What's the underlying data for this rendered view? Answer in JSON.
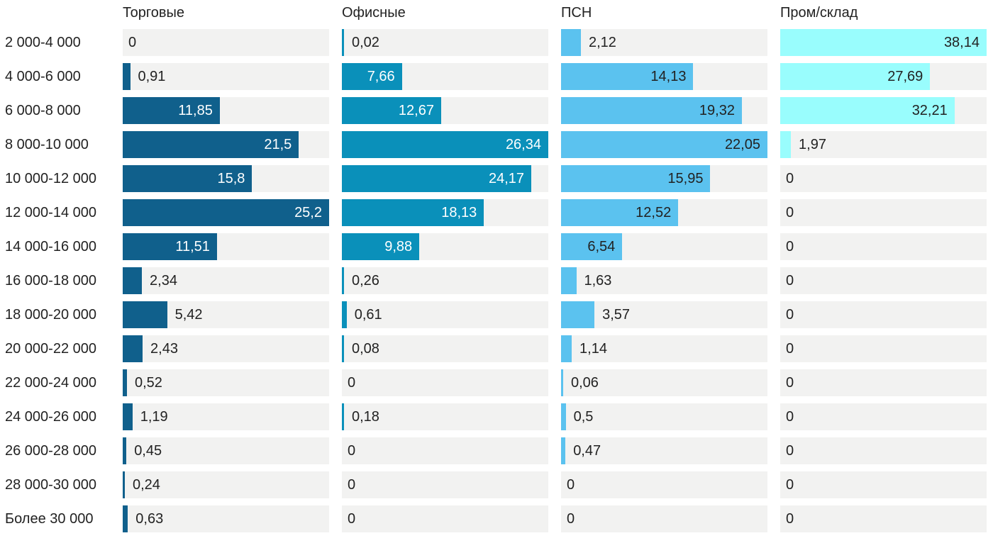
{
  "chart_data": {
    "type": "bar",
    "orientation": "horizontal",
    "title": "",
    "xlabel": "",
    "ylabel": "",
    "legend_position": "column-headers-top",
    "grid": false,
    "number_format": "comma-decimal",
    "track_color": "#F2F2F1",
    "text_color": "#222222",
    "categories": [
      "2 000-4 000",
      "4 000-6 000",
      "6 000-8 000",
      "8 000-10 000",
      "10 000-12 000",
      "12 000-14 000",
      "14 000-16 000",
      "16 000-18 000",
      "18 000-20 000",
      "20 000-22 000",
      "22 000-24 000",
      "24 000-26 000",
      "26 000-28 000",
      "28 000-30 000",
      "Более 30 000"
    ],
    "series": [
      {
        "name": "Торговые",
        "color": "#10608C",
        "inside_text_color": "#FFFFFF",
        "values": [
          0,
          0.91,
          11.85,
          21.5,
          15.8,
          25.2,
          11.51,
          2.34,
          5.42,
          2.43,
          0.52,
          1.19,
          0.45,
          0.24,
          0.63
        ],
        "labels": [
          "0",
          "0,91",
          "11,85",
          "21,5",
          "15,8",
          "25,2",
          "11,51",
          "2,34",
          "5,42",
          "2,43",
          "0,52",
          "1,19",
          "0,45",
          "0,24",
          "0,63"
        ]
      },
      {
        "name": "Офисные",
        "color": "#0A90BA",
        "inside_text_color": "#FFFFFF",
        "values": [
          0.02,
          7.66,
          12.67,
          26.34,
          24.17,
          18.13,
          9.88,
          0.26,
          0.61,
          0.08,
          0,
          0.18,
          0,
          0,
          0
        ],
        "labels": [
          "0,02",
          "7,66",
          "12,67",
          "26,34",
          "24,17",
          "18,13",
          "9,88",
          "0,26",
          "0,61",
          "0,08",
          "0",
          "0,18",
          "0",
          "0",
          "0"
        ]
      },
      {
        "name": "ПСН",
        "color": "#5BC2EF",
        "inside_text_color": "#222222",
        "values": [
          2.12,
          14.13,
          19.32,
          22.05,
          15.95,
          12.52,
          6.54,
          1.63,
          3.57,
          1.14,
          0.06,
          0.5,
          0.47,
          0,
          0
        ],
        "labels": [
          "2,12",
          "14,13",
          "19,32",
          "22,05",
          "15,95",
          "12,52",
          "6,54",
          "1,63",
          "3,57",
          "1,14",
          "0,06",
          "0,5",
          "0,47",
          "0",
          "0"
        ]
      },
      {
        "name": "Пром/склад",
        "color": "#99FDFD",
        "inside_text_color": "#222222",
        "values": [
          38.14,
          27.69,
          32.21,
          1.97,
          0,
          0,
          0,
          0,
          0,
          0,
          0,
          0,
          0,
          0,
          0
        ],
        "labels": [
          "38,14",
          "27,69",
          "32,21",
          "1,97",
          "0",
          "0",
          "0",
          "0",
          "0",
          "0",
          "0",
          "0",
          "0",
          "0",
          "0"
        ]
      }
    ]
  }
}
